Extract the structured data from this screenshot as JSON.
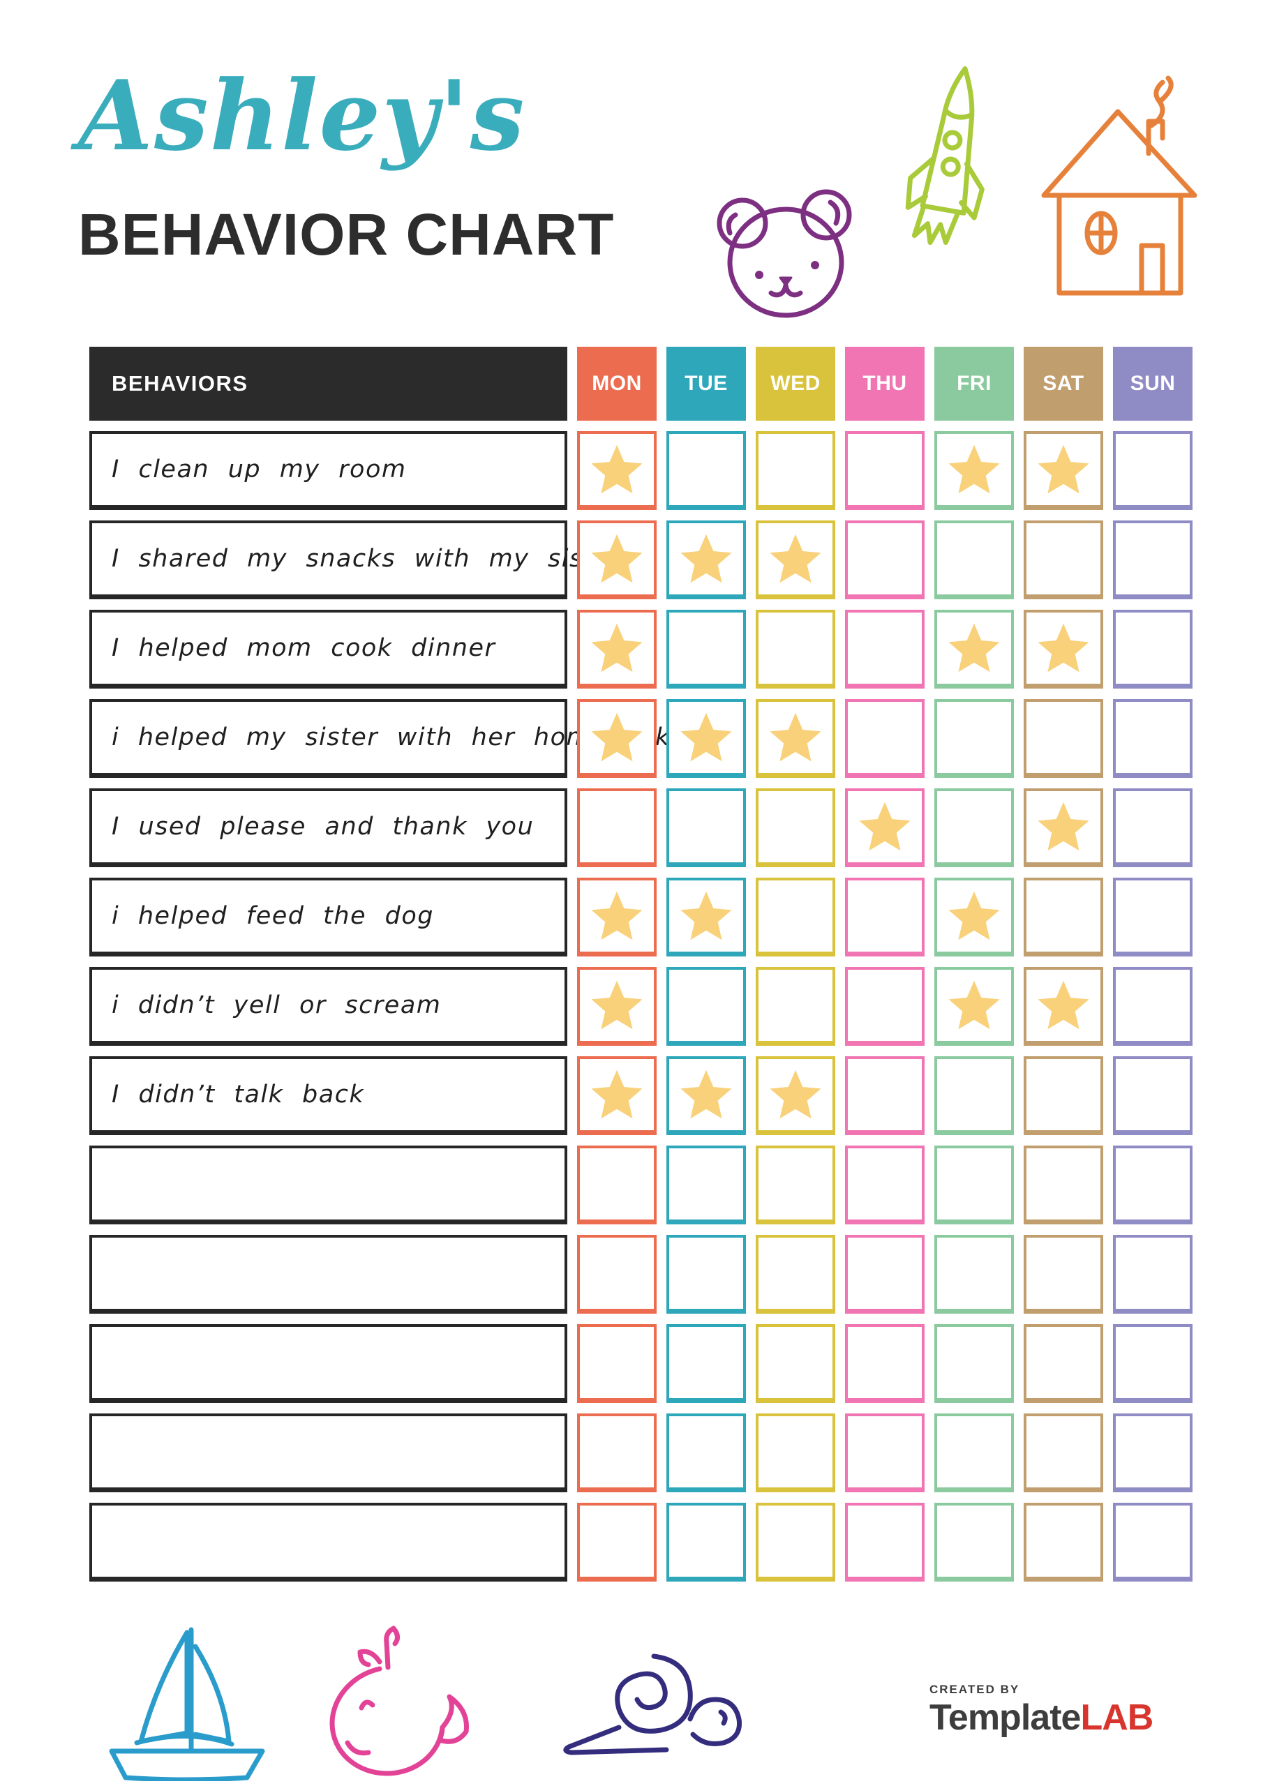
{
  "page": {
    "title_script": "Ashley's",
    "title_main": "BEHAVIOR CHART",
    "title_script_color": "#3aadbc",
    "title_main_color": "#2d2d2d"
  },
  "decorations": {
    "bear_color": "#7d2f82",
    "rocket_color": "#a9cb3a",
    "house_color": "#e6813b",
    "sailboat_color": "#2a9ccb",
    "whale_color": "#e34396",
    "snail_color": "#342d7d"
  },
  "table": {
    "behaviors_header": "BEHAVIORS",
    "header_bg": "#2b2b2b",
    "star_color": "#f8d17a",
    "days": [
      {
        "label": "MON",
        "color": "#ec6c50"
      },
      {
        "label": "TUE",
        "color": "#2fa7ba"
      },
      {
        "label": "WED",
        "color": "#d9c23c"
      },
      {
        "label": "THU",
        "color": "#f075b2"
      },
      {
        "label": "FRI",
        "color": "#8bca9f"
      },
      {
        "label": "SAT",
        "color": "#c19e6e"
      },
      {
        "label": "SUN",
        "color": "#8f8bc5"
      }
    ],
    "rows": [
      {
        "label": "I clean up my room",
        "stars": [
          "MON",
          "FRI",
          "SAT"
        ]
      },
      {
        "label": "I shared my snacks with my sister",
        "stars": [
          "MON",
          "TUE",
          "WED"
        ]
      },
      {
        "label": "I helped mom cook dinner",
        "stars": [
          "MON",
          "FRI",
          "SAT"
        ]
      },
      {
        "label": "i helped my sister with her homework",
        "stars": [
          "MON",
          "TUE",
          "WED"
        ]
      },
      {
        "label": "I used please and thank you",
        "stars": [
          "THU",
          "SAT"
        ]
      },
      {
        "label": "i helped feed the dog",
        "stars": [
          "MON",
          "TUE",
          "FRI"
        ]
      },
      {
        "label": "i didn’t yell or scream",
        "stars": [
          "MON",
          "FRI",
          "SAT"
        ]
      },
      {
        "label": "I didn’t talk back",
        "stars": [
          "MON",
          "TUE",
          "WED"
        ]
      },
      {
        "label": "",
        "stars": []
      },
      {
        "label": "",
        "stars": []
      },
      {
        "label": "",
        "stars": []
      },
      {
        "label": "",
        "stars": []
      },
      {
        "label": "",
        "stars": []
      }
    ]
  },
  "footer": {
    "created_by": "CREATED BY",
    "brand_template": "Template",
    "brand_lab": "LAB",
    "brand_color": "#3d3d3d",
    "brand_accent": "#d8352f"
  }
}
